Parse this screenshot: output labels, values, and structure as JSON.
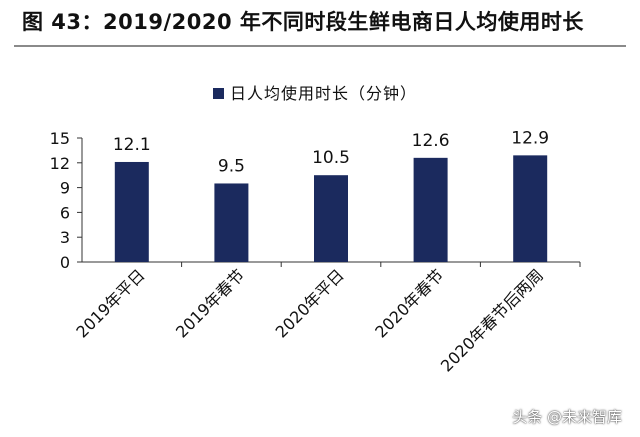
{
  "figure": {
    "title": "图 43：2019/2020 年不同时段生鲜电商日人均使用时长"
  },
  "watermark": "头条 @未来智库",
  "chart_data": {
    "type": "bar",
    "categories": [
      "2019年平日",
      "2019年春节",
      "2020年平日",
      "2020年春节",
      "2020年春节后两周"
    ],
    "series": [
      {
        "name": "日人均使用时长（分钟）",
        "values": [
          12.1,
          9.5,
          10.5,
          12.6,
          12.9
        ],
        "color": "#1b2a5e"
      }
    ],
    "data_labels": [
      "12.1",
      "9.5",
      "10.5",
      "12.6",
      "12.9"
    ],
    "ylim": [
      0,
      15
    ],
    "yticks": [
      0,
      3,
      6,
      9,
      12,
      15
    ],
    "xlabel": "",
    "ylabel": "",
    "grid": false,
    "legend_position": "top-center"
  }
}
